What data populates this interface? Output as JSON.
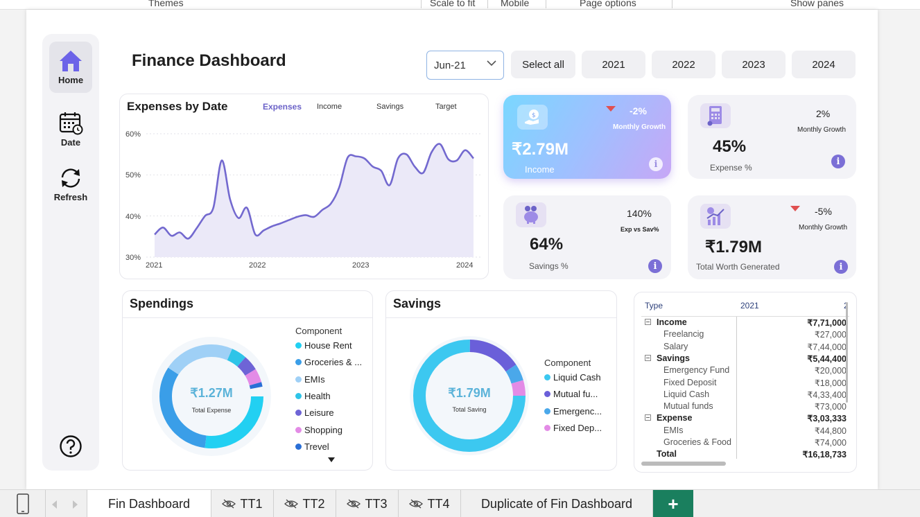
{
  "ribbon": {
    "themes": "Themes",
    "scale": "Scale to fit",
    "mobile": "Mobile",
    "page_options": "Page options",
    "show_panes": "Show panes"
  },
  "title": "Finance Dashboard",
  "sidebar": {
    "home": "Home",
    "date": "Date",
    "refresh": "Refresh"
  },
  "slicer": {
    "selected": "Jun-21",
    "select_all": "Select all",
    "years": [
      "2021",
      "2022",
      "2023",
      "2024"
    ]
  },
  "line_card": {
    "title": "Expenses by Date",
    "tabs": [
      "Expenses",
      "Income",
      "Savings",
      "Target"
    ],
    "y_ticks": [
      "60%",
      "50%",
      "40%",
      "30%"
    ],
    "x_ticks": [
      "2021",
      "2022",
      "2023",
      "2024"
    ]
  },
  "chart_data": {
    "type": "area",
    "title": "Expenses by Date",
    "x": [
      "2021-01",
      "2021-02",
      "2021-03",
      "2021-04",
      "2021-05",
      "2021-06",
      "2021-07",
      "2021-08",
      "2021-09",
      "2021-10",
      "2021-11",
      "2021-12",
      "2022-01",
      "2022-02",
      "2022-03",
      "2022-04",
      "2022-05",
      "2022-06",
      "2022-07",
      "2022-08",
      "2022-09",
      "2022-10",
      "2022-11",
      "2022-12",
      "2023-01",
      "2023-02",
      "2023-03",
      "2023-04",
      "2023-05",
      "2023-06",
      "2023-07",
      "2023-08",
      "2023-09",
      "2023-10",
      "2023-11",
      "2023-12",
      "2024-01",
      "2024-02",
      "2024-03"
    ],
    "values": [
      35.5,
      37.2,
      35.2,
      36.0,
      34.5,
      37.0,
      40.0,
      42.0,
      53.5,
      44.0,
      39.5,
      42.0,
      35.5,
      36.5,
      37.5,
      38.2,
      39.0,
      39.8,
      40.2,
      39.8,
      41.5,
      43.0,
      47.0,
      54.2,
      54.5,
      54.0,
      52.0,
      51.0,
      47.5,
      54.0,
      55.0,
      52.0,
      50.5,
      55.5,
      57.5,
      53.8,
      53.5,
      56.0,
      54.0
    ],
    "ylim": [
      30,
      60
    ],
    "y_unit": "%",
    "series": [
      {
        "name": "Expenses"
      }
    ]
  },
  "kpis": {
    "income": {
      "value": "₹2.79M",
      "label": "Income",
      "pct": "-2%",
      "pct_label": "Monthly Growth"
    },
    "expense": {
      "value": "45%",
      "label": "Expense %",
      "pct": "2%",
      "pct_label": "Monthly Growth"
    },
    "savings": {
      "value": "64%",
      "label": "Savings %",
      "pct": "140%",
      "pct_label": "Exp vs Sav%"
    },
    "worth": {
      "value": "₹1.79M",
      "label": "Total Worth Generated",
      "pct": "-5%",
      "pct_label": "Monthly Growth"
    }
  },
  "spendings": {
    "title": "Spendings",
    "center_value": "₹1.27M",
    "center_label": "Total Expense",
    "legend_title": "Component",
    "items": [
      {
        "label": "House Rent",
        "color": "#22d0f2"
      },
      {
        "label": "Groceries & ...",
        "color": "#3a9ee8"
      },
      {
        "label": "EMIs",
        "color": "#9fd0f6"
      },
      {
        "label": "Health",
        "color": "#2ec4e8"
      },
      {
        "label": "Leisure",
        "color": "#6e64d6"
      },
      {
        "label": "Shopping",
        "color": "#e38be6"
      },
      {
        "label": "Trevel",
        "color": "#2a6fd6"
      }
    ]
  },
  "savings_card": {
    "title": "Savings",
    "center_value": "₹1.79M",
    "center_label": "Total Saving",
    "legend_title": "Component",
    "items": [
      {
        "label": "Liquid Cash",
        "color": "#3cc8f0"
      },
      {
        "label": "Mutual fu...",
        "color": "#6a5fd9"
      },
      {
        "label": "Emergenc...",
        "color": "#4aa8ea"
      },
      {
        "label": "Fixed Dep...",
        "color": "#e38be6"
      }
    ]
  },
  "matrix": {
    "headers": [
      "Type",
      "2021"
    ],
    "rows": [
      {
        "name": "Income",
        "value": "₹7,71,000",
        "level": 0
      },
      {
        "name": "Freelancig",
        "value": "₹27,000",
        "level": 1
      },
      {
        "name": "Salary",
        "value": "₹7,44,000",
        "level": 1
      },
      {
        "name": "Savings",
        "value": "₹5,44,400",
        "level": 0
      },
      {
        "name": "Emergency Fund",
        "value": "₹20,000",
        "level": 1
      },
      {
        "name": "Fixed Deposit",
        "value": "₹18,000",
        "level": 1
      },
      {
        "name": "Liquid Cash",
        "value": "₹4,33,400",
        "level": 1
      },
      {
        "name": "Mutual funds",
        "value": "₹73,000",
        "level": 1
      },
      {
        "name": "Expense",
        "value": "₹3,03,333",
        "level": 0
      },
      {
        "name": "EMIs",
        "value": "₹44,800",
        "level": 1
      },
      {
        "name": "Groceries & Food",
        "value": "₹74,000",
        "level": 1
      },
      {
        "name": "Total",
        "value": "₹16,18,733",
        "level": 2
      }
    ]
  },
  "tabs": [
    "Fin Dashboard",
    "TT1",
    "TT2",
    "TT3",
    "TT4",
    "Duplicate of Fin Dashboard"
  ],
  "add_tab": "+"
}
